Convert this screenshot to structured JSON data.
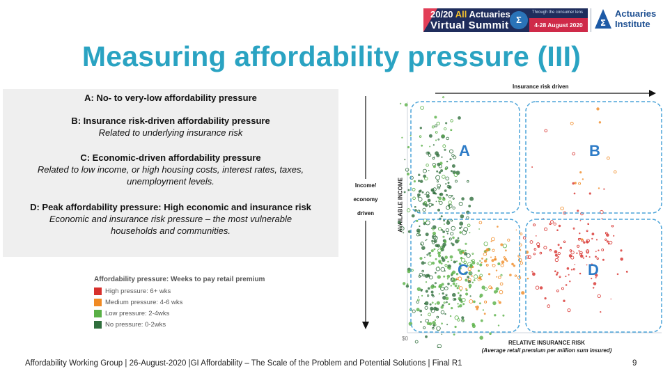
{
  "header": {
    "summit_line1a": "20/20",
    "summit_line1b": "All",
    "summit_line1c": "Actuaries",
    "summit_line2": "Virtual Summit",
    "summit_tagline": "Through the consumer lens",
    "summit_dates": "4-28 August 2020",
    "institute_line1": "Actuaries",
    "institute_line2": "Institute"
  },
  "title": "Measuring affordability pressure (III)",
  "definitions": {
    "a_title": "A: No- to very-low affordability pressure",
    "b_title": "B: Insurance risk-driven affordability pressure",
    "b_desc": "Related to underlying insurance risk",
    "c_title": "C: Economic-driven affordability pressure",
    "c_desc_1": "Related to low income, or high housing costs, interest rates, taxes,",
    "c_desc_2": "unemployment levels.",
    "d_title": "D: Peak affordability pressure: High economic and insurance risk",
    "d_desc_1": "Economic and insurance risk pressure – the most vulnerable",
    "d_desc_2": "households and communities."
  },
  "legend": {
    "title": "Affordability pressure: Weeks to pay retail premium",
    "items": [
      {
        "label": "High pressure: 6+ wks",
        "color": "#d7302c"
      },
      {
        "label": "Medium pressure: 4-6 wks",
        "color": "#f08a24"
      },
      {
        "label": "Low pressure: 2-4wks",
        "color": "#59b046"
      },
      {
        "label": "No pressure: 0-2wks",
        "color": "#2f6e3c"
      }
    ]
  },
  "chart": {
    "top_arrow_label": "Insurance risk driven",
    "side_arrow_label_1": "Income/",
    "side_arrow_label_2": "economy",
    "side_arrow_label_3": "driven",
    "y_label": "AVAILABLE INCOME",
    "x_origin": "$0",
    "x_label": "RELATIVE INSURANCE RISK",
    "x_sublabel": "(Average retail premium per million sum insured)",
    "quadrant_a": "A",
    "quadrant_b": "B",
    "quadrant_c": "C",
    "quadrant_d": "D",
    "quadrant_color": "#2e7cc7",
    "box_border_color": "#4aa3d8"
  },
  "footer": {
    "text": "Affordability Working Group | 26-August-2020 |GI Affordability – The Scale of the Problem and Potential Solutions | Final R1",
    "page": "9"
  }
}
